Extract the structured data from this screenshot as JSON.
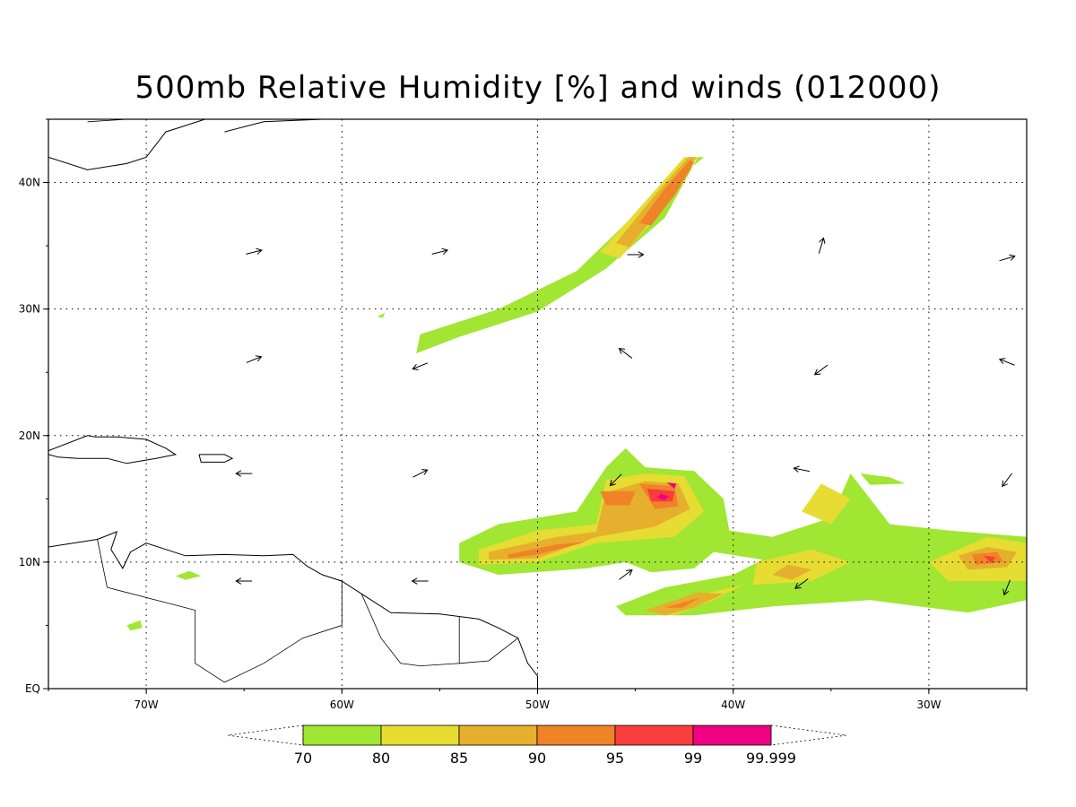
{
  "title": "500mb Relative Humidity [%] and winds (012000)",
  "map": {
    "lon_range": [
      -75,
      -25
    ],
    "lat_range": [
      0,
      45
    ],
    "x_ticks": [
      {
        "lon": -70,
        "label": "70W"
      },
      {
        "lon": -60,
        "label": "60W"
      },
      {
        "lon": -50,
        "label": "50W"
      },
      {
        "lon": -40,
        "label": "40W"
      },
      {
        "lon": -30,
        "label": "30W"
      }
    ],
    "y_ticks": [
      {
        "lat": 0,
        "label": "EQ"
      },
      {
        "lat": 10,
        "label": "10N"
      },
      {
        "lat": 20,
        "label": "20N"
      },
      {
        "lat": 30,
        "label": "30N"
      },
      {
        "lat": 40,
        "label": "40N"
      }
    ],
    "grid": "dotted"
  },
  "colorbar": {
    "levels": [
      "70",
      "80",
      "85",
      "90",
      "95",
      "99",
      "99.999"
    ],
    "colors": [
      "#a0e632",
      "#e6dc32",
      "#e6af2d",
      "#f08228",
      "#fa3c3c",
      "#f00082"
    ]
  },
  "humidity_regions": [
    {
      "level": 0,
      "points": [
        [
          -41.5,
          42
        ],
        [
          -45,
          37.5
        ],
        [
          -48,
          33
        ],
        [
          -52,
          30
        ],
        [
          -56,
          28
        ],
        [
          -56.2,
          26.5
        ],
        [
          -54,
          27.8
        ],
        [
          -50,
          29.8
        ],
        [
          -46.5,
          33.2
        ],
        [
          -43.5,
          37.2
        ],
        [
          -41.8,
          42
        ]
      ]
    },
    {
      "level": 1,
      "points": [
        [
          -42.5,
          42
        ],
        [
          -44.5,
          38.5
        ],
        [
          -46.8,
          34.5
        ],
        [
          -45.8,
          34
        ],
        [
          -43.5,
          38
        ],
        [
          -41.8,
          42
        ]
      ]
    },
    {
      "level": 2,
      "points": [
        [
          -42.3,
          42
        ],
        [
          -44,
          39
        ],
        [
          -46,
          35.2
        ],
        [
          -45.3,
          34.9
        ],
        [
          -43.3,
          38.7
        ],
        [
          -41.9,
          42
        ]
      ]
    },
    {
      "level": 3,
      "points": [
        [
          -42.2,
          41.8
        ],
        [
          -43.5,
          39.5
        ],
        [
          -44.8,
          36.8
        ],
        [
          -44.2,
          36.6
        ],
        [
          -42.9,
          39.2
        ],
        [
          -42,
          41.6
        ]
      ]
    },
    {
      "level": 0,
      "points": [
        [
          -54,
          11.5
        ],
        [
          -52,
          13
        ],
        [
          -48,
          14
        ],
        [
          -46.5,
          17.5
        ],
        [
          -45.5,
          19
        ],
        [
          -44.5,
          17.5
        ],
        [
          -42,
          17.2
        ],
        [
          -40.5,
          15
        ],
        [
          -40.2,
          12.5
        ],
        [
          -38,
          12
        ],
        [
          -35,
          13.5
        ],
        [
          -34,
          17
        ],
        [
          -33,
          15
        ],
        [
          -32,
          13
        ],
        [
          -29,
          12.5
        ],
        [
          -25,
          12
        ],
        [
          -25,
          7
        ],
        [
          -28,
          6
        ],
        [
          -33,
          7
        ],
        [
          -38,
          6.5
        ],
        [
          -42,
          5.8
        ],
        [
          -45.5,
          5.8
        ],
        [
          -46,
          6.5
        ],
        [
          -43.5,
          8
        ],
        [
          -40,
          9
        ],
        [
          -38.5,
          10.2
        ],
        [
          -41,
          10.8
        ],
        [
          -42,
          9.5
        ],
        [
          -44.2,
          9.2
        ],
        [
          -45.5,
          10
        ],
        [
          -47.5,
          9.5
        ],
        [
          -52,
          9
        ],
        [
          -54,
          10
        ]
      ]
    },
    {
      "level": 1,
      "points": [
        [
          -53,
          11
        ],
        [
          -50,
          12.5
        ],
        [
          -47,
          13
        ],
        [
          -46.5,
          16.5
        ],
        [
          -44.5,
          17
        ],
        [
          -42.5,
          16.8
        ],
        [
          -41.5,
          14
        ],
        [
          -43,
          12
        ],
        [
          -47,
          11.5
        ],
        [
          -50,
          10
        ],
        [
          -53,
          9.8
        ]
      ]
    },
    {
      "level": 1,
      "points": [
        [
          -38.8,
          10
        ],
        [
          -36,
          11
        ],
        [
          -34,
          10
        ],
        [
          -36,
          8.5
        ],
        [
          -39,
          8.2
        ]
      ]
    },
    {
      "level": 1,
      "points": [
        [
          -35.5,
          16.2
        ],
        [
          -34,
          15
        ],
        [
          -35,
          13
        ],
        [
          -36.5,
          14
        ]
      ]
    },
    {
      "level": 1,
      "points": [
        [
          -30,
          10
        ],
        [
          -27,
          12
        ],
        [
          -25,
          11.5
        ],
        [
          -25,
          8.5
        ],
        [
          -29,
          8.5
        ]
      ]
    },
    {
      "level": 1,
      "points": [
        [
          -44,
          6
        ],
        [
          -41.5,
          7.5
        ],
        [
          -39.5,
          8.2
        ],
        [
          -41,
          7
        ],
        [
          -43,
          5.8
        ]
      ]
    },
    {
      "level": 2,
      "points": [
        [
          -52.5,
          10.8
        ],
        [
          -49,
          12
        ],
        [
          -47,
          12.4
        ],
        [
          -46.5,
          15.5
        ],
        [
          -44.5,
          16.4
        ],
        [
          -42.8,
          16.2
        ],
        [
          -42.2,
          14.2
        ],
        [
          -44,
          12.8
        ],
        [
          -47,
          12
        ],
        [
          -50,
          10.3
        ],
        [
          -52.5,
          10.2
        ]
      ]
    },
    {
      "level": 2,
      "points": [
        [
          -37.2,
          9.8
        ],
        [
          -36,
          9.4
        ],
        [
          -37,
          8.6
        ],
        [
          -38,
          9
        ]
      ]
    },
    {
      "level": 2,
      "points": [
        [
          -28.5,
          10.5
        ],
        [
          -27,
          11.2
        ],
        [
          -25.5,
          10.8
        ],
        [
          -26,
          9.6
        ],
        [
          -28,
          9.4
        ]
      ]
    },
    {
      "level": 2,
      "points": [
        [
          -44.5,
          6.2
        ],
        [
          -41.8,
          7.6
        ],
        [
          -40.5,
          7.5
        ],
        [
          -42,
          6.4
        ],
        [
          -43.5,
          5.8
        ]
      ]
    },
    {
      "level": 3,
      "points": [
        [
          -51.5,
          10.6
        ],
        [
          -49,
          11.4
        ],
        [
          -47.5,
          11.6
        ],
        [
          -50,
          10.6
        ],
        [
          -51.5,
          10.3
        ]
      ]
    },
    {
      "level": 3,
      "points": [
        [
          -46.8,
          15.6
        ],
        [
          -45,
          15.6
        ],
        [
          -45.3,
          14.5
        ],
        [
          -46.5,
          14.5
        ]
      ]
    },
    {
      "level": 3,
      "points": [
        [
          -44.8,
          16.2
        ],
        [
          -43,
          16
        ],
        [
          -42.8,
          14.4
        ],
        [
          -44,
          14.2
        ]
      ]
    },
    {
      "level": 3,
      "points": [
        [
          -27.8,
          10.6
        ],
        [
          -26.5,
          10.8
        ],
        [
          -26.2,
          10
        ],
        [
          -27.6,
          9.8
        ]
      ]
    },
    {
      "level": 3,
      "points": [
        [
          -43.5,
          6.4
        ],
        [
          -41.7,
          7.2
        ],
        [
          -42.6,
          6.4
        ]
      ]
    },
    {
      "level": 4,
      "points": [
        [
          -44.4,
          15.8
        ],
        [
          -43,
          15.6
        ],
        [
          -43.1,
          14.8
        ],
        [
          -44.2,
          14.8
        ]
      ]
    },
    {
      "level": 4,
      "points": [
        [
          -27.2,
          10.5
        ],
        [
          -26.6,
          10.4
        ],
        [
          -26.8,
          9.9
        ]
      ]
    },
    {
      "level": 5,
      "points": [
        [
          -43.7,
          15.4
        ],
        [
          -43.3,
          15.2
        ],
        [
          -43.5,
          14.9
        ],
        [
          -43.9,
          15.1
        ]
      ]
    },
    {
      "level": 5,
      "points": [
        [
          -43.4,
          16.3
        ],
        [
          -42.9,
          16.2
        ],
        [
          -43,
          15.8
        ]
      ]
    },
    {
      "level": 0,
      "points": [
        [
          -33.5,
          17
        ],
        [
          -32,
          16.7
        ],
        [
          -31.2,
          16.2
        ],
        [
          -33,
          16.1
        ]
      ]
    },
    {
      "level": 0,
      "points": [
        [
          -58.2,
          29.4
        ],
        [
          -57.8,
          29.7
        ],
        [
          -57.9,
          29.3
        ]
      ]
    },
    {
      "level": 0,
      "points": [
        [
          -68.5,
          8.9
        ],
        [
          -67.8,
          9.3
        ],
        [
          -67.2,
          8.9
        ],
        [
          -68,
          8.6
        ]
      ]
    },
    {
      "level": 0,
      "points": [
        [
          -71,
          5
        ],
        [
          -70.3,
          5.4
        ],
        [
          -70.2,
          4.8
        ],
        [
          -70.8,
          4.6
        ]
      ]
    }
  ],
  "coastlines": [
    [
      [
        -75,
        42
      ],
      [
        -73,
        41
      ],
      [
        -71,
        41.5
      ],
      [
        -70,
        42
      ],
      [
        -69,
        44
      ],
      [
        -67,
        45
      ]
    ],
    [
      [
        -66,
        44
      ],
      [
        -64,
        44.8
      ],
      [
        -61,
        45
      ],
      [
        -60,
        46
      ]
    ],
    [
      [
        -58,
        45
      ],
      [
        -56,
        45.2
      ],
      [
        -55.5,
        46
      ]
    ],
    [
      [
        -75,
        18.8
      ],
      [
        -73,
        20
      ],
      [
        -72.6,
        19.9
      ],
      [
        -71.5,
        19.9
      ],
      [
        -70,
        19.7
      ],
      [
        -69,
        19
      ],
      [
        -68.5,
        18.5
      ],
      [
        -69.5,
        18.2
      ],
      [
        -71,
        17.8
      ],
      [
        -72,
        18.2
      ],
      [
        -73.5,
        18.2
      ],
      [
        -74.5,
        18.3
      ],
      [
        -75,
        18.5
      ]
    ],
    [
      [
        -67.3,
        18.5
      ],
      [
        -66,
        18.5
      ],
      [
        -65.6,
        18.2
      ],
      [
        -66,
        17.9
      ],
      [
        -67.2,
        17.9
      ],
      [
        -67.3,
        18.5
      ]
    ],
    [
      [
        -75,
        11.2
      ],
      [
        -72.5,
        11.8
      ],
      [
        -71.5,
        12.4
      ],
      [
        -71.8,
        11
      ],
      [
        -71.2,
        9.5
      ],
      [
        -70.8,
        10.8
      ],
      [
        -70,
        11.5
      ],
      [
        -68,
        10.5
      ],
      [
        -66,
        10.6
      ],
      [
        -64,
        10.5
      ],
      [
        -62.5,
        10.6
      ],
      [
        -61.8,
        9.7
      ],
      [
        -61,
        9
      ],
      [
        -60,
        8.5
      ],
      [
        -59,
        7.5
      ],
      [
        -57.5,
        6
      ],
      [
        -55,
        5.9
      ],
      [
        -53,
        5.5
      ],
      [
        -52,
        4.8
      ],
      [
        -51,
        4
      ],
      [
        -50.5,
        2
      ],
      [
        -50,
        1
      ],
      [
        -50,
        0
      ]
    ],
    [
      [
        -75,
        0
      ],
      [
        -75,
        11.2
      ]
    ]
  ],
  "boundaries": [
    [
      [
        -72.5,
        11.8
      ],
      [
        -72,
        8
      ],
      [
        -67.5,
        6.2
      ],
      [
        -67.5,
        2
      ],
      [
        -66,
        0.5
      ],
      [
        -64,
        2
      ],
      [
        -62,
        4
      ],
      [
        -60,
        5
      ],
      [
        -60,
        8.5
      ]
    ],
    [
      [
        -59,
        7.5
      ],
      [
        -58,
        4
      ],
      [
        -57,
        2
      ],
      [
        -56,
        1.8
      ],
      [
        -54,
        2
      ],
      [
        -54,
        5.7
      ]
    ],
    [
      [
        -54,
        2
      ],
      [
        -52.5,
        2.2
      ],
      [
        -51,
        4
      ]
    ],
    [
      [
        -70,
        0
      ],
      [
        -70,
        -0.1
      ]
    ],
    [
      [
        -73,
        44.8
      ],
      [
        -71,
        45
      ],
      [
        -69,
        47
      ],
      [
        -67.5,
        45
      ],
      [
        -67,
        45
      ]
    ]
  ],
  "winds": [
    {
      "lon": -64.5,
      "lat": 34.5,
      "u": 1.0,
      "v": 0.25
    },
    {
      "lon": -55.0,
      "lat": 34.5,
      "u": 1.0,
      "v": 0.25
    },
    {
      "lon": -45.0,
      "lat": 34.3,
      "u": 1.0,
      "v": 0.0
    },
    {
      "lon": -35.5,
      "lat": 35.0,
      "u": 0.3,
      "v": 1.0
    },
    {
      "lon": -26.0,
      "lat": 34.0,
      "u": 1.0,
      "v": 0.3
    },
    {
      "lon": -64.5,
      "lat": 26.0,
      "u": 1.0,
      "v": 0.4
    },
    {
      "lon": -56.0,
      "lat": 25.5,
      "u": -1.0,
      "v": -0.4
    },
    {
      "lon": -45.5,
      "lat": 26.5,
      "u": -0.8,
      "v": 0.6
    },
    {
      "lon": -35.5,
      "lat": 25.2,
      "u": -0.8,
      "v": -0.6
    },
    {
      "lon": -26.0,
      "lat": 25.8,
      "u": -1.0,
      "v": 0.4
    },
    {
      "lon": -65.0,
      "lat": 17.0,
      "u": -1.0,
      "v": 0.0
    },
    {
      "lon": -56.0,
      "lat": 17.0,
      "u": 1.0,
      "v": 0.5
    },
    {
      "lon": -46.0,
      "lat": 16.5,
      "u": -0.7,
      "v": -0.7
    },
    {
      "lon": -36.5,
      "lat": 17.3,
      "u": -1.0,
      "v": 0.2
    },
    {
      "lon": -26.0,
      "lat": 16.5,
      "u": -0.6,
      "v": -0.8
    },
    {
      "lon": -65.0,
      "lat": 8.5,
      "u": -1.0,
      "v": 0.0
    },
    {
      "lon": -56.0,
      "lat": 8.5,
      "u": -1.0,
      "v": 0.0
    },
    {
      "lon": -45.5,
      "lat": 9.0,
      "u": 0.8,
      "v": 0.6
    },
    {
      "lon": -36.5,
      "lat": 8.3,
      "u": -0.8,
      "v": -0.6
    },
    {
      "lon": -26.0,
      "lat": 8.0,
      "u": -0.4,
      "v": -1.0
    }
  ]
}
